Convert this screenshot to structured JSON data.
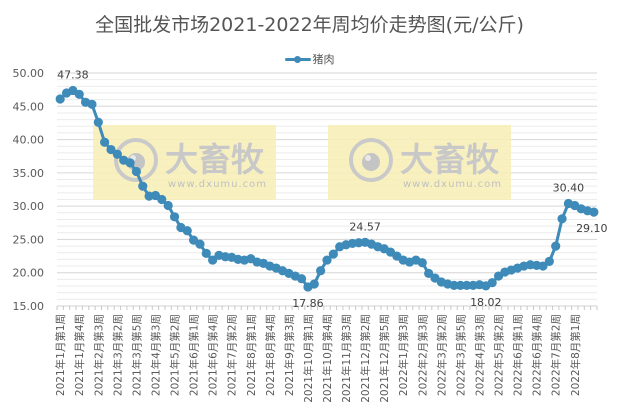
{
  "title": "全国批发市场2021-2022年周均价走势图(元/公斤)",
  "legend": {
    "series_name": "猪肉",
    "color": "#3e8ab8"
  },
  "watermark": {
    "brand": "大畜牧",
    "url": "www.dxumu.com",
    "bg": "#f7eeb4"
  },
  "chart_data": {
    "type": "line",
    "title": "全国批发市场2021-2022年周均价走势图(元/公斤)",
    "xlabel": "",
    "ylabel": "",
    "ylim": [
      15,
      50
    ],
    "yticks": [
      "50.00",
      "45.00",
      "40.00",
      "35.00",
      "30.00",
      "25.00",
      "20.00",
      "15.00"
    ],
    "grid": true,
    "legend_position": "top",
    "tick_labels": [
      "2021年1月第1周",
      "2021年1月第4周",
      "2021年2月第3周",
      "2021年3月第2周",
      "2021年3月第5周",
      "2021年4月第3周",
      "2021年5月第2周",
      "2021年6月第1周",
      "2021年6月第4周",
      "2021年7月第2周",
      "2021年8月第1周",
      "2021年8月第4周",
      "2021年9月第3周",
      "2021年10月第1周",
      "2021年10月第4周",
      "2021年11月第3周",
      "2021年12月第2周",
      "2021年12月第5周",
      "2022年1月第3周",
      "2022年2月第3周",
      "2022年3月第2周",
      "2022年3月第5周",
      "2022年4月第3周",
      "2022年5月第2周",
      "2022年6月第1周",
      "2022年6月第4周",
      "2022年7月第2周",
      "2022年8月第1周"
    ],
    "series": [
      {
        "name": "猪肉",
        "values": [
          46.1,
          47.0,
          47.38,
          46.8,
          45.6,
          45.3,
          42.6,
          39.6,
          38.5,
          37.8,
          36.9,
          36.5,
          35.2,
          33.0,
          31.5,
          31.6,
          31.0,
          30.1,
          28.4,
          26.8,
          26.3,
          24.9,
          24.3,
          22.9,
          21.9,
          22.6,
          22.4,
          22.3,
          22.0,
          21.9,
          22.1,
          21.6,
          21.4,
          21.0,
          20.7,
          20.3,
          19.9,
          19.5,
          19.1,
          17.86,
          18.3,
          20.3,
          21.9,
          22.8,
          23.9,
          24.2,
          24.4,
          24.5,
          24.57,
          24.3,
          23.9,
          23.6,
          23.1,
          22.5,
          21.9,
          21.6,
          21.9,
          21.5,
          19.9,
          19.2,
          18.6,
          18.3,
          18.1,
          18.1,
          18.1,
          18.1,
          18.2,
          18.02,
          18.5,
          19.5,
          20.1,
          20.4,
          20.7,
          21.0,
          21.2,
          21.1,
          21.0,
          21.7,
          24.0,
          28.1,
          30.4,
          30.1,
          29.6,
          29.3,
          29.1
        ]
      }
    ],
    "annotations": [
      {
        "index": 2,
        "label": "47.38",
        "position": "above"
      },
      {
        "index": 39,
        "label": "17.86",
        "position": "below"
      },
      {
        "index": 48,
        "label": "24.57",
        "position": "above"
      },
      {
        "index": 67,
        "label": "18.02",
        "position": "below"
      },
      {
        "index": 80,
        "label": "30.40",
        "position": "above"
      },
      {
        "index": 84,
        "label": "29.10",
        "position": "below"
      }
    ]
  }
}
